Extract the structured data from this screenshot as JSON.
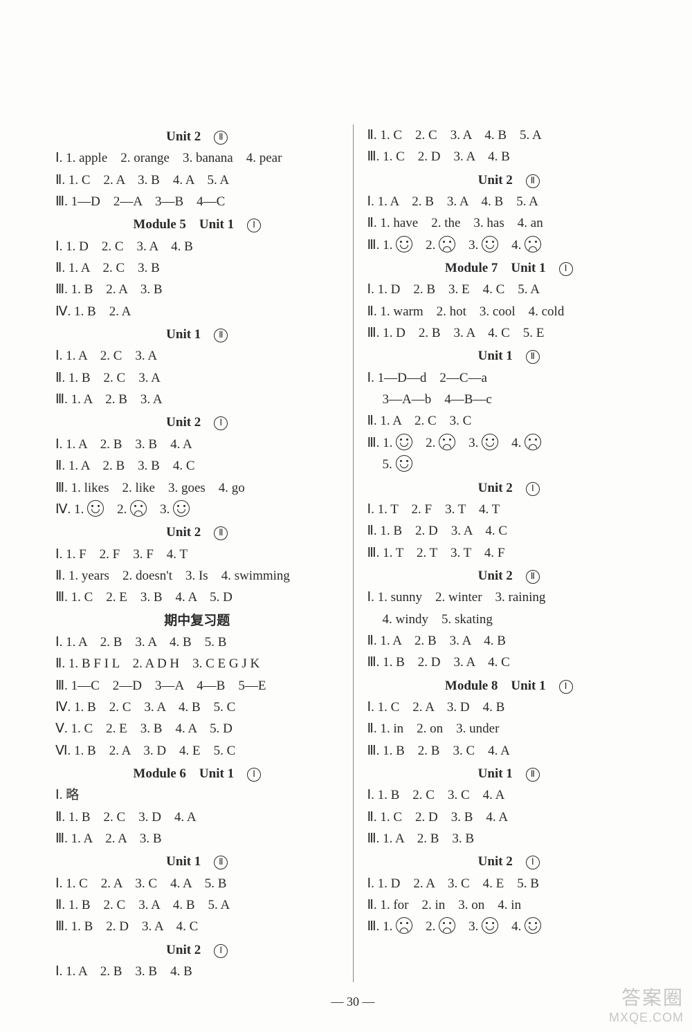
{
  "page_number": "— 30 —",
  "watermark": {
    "line1": "答案圈",
    "line2": "MXQE.COM"
  },
  "left": [
    {
      "type": "heading",
      "text": "Unit 2",
      "circ": "Ⅱ"
    },
    {
      "type": "line",
      "text": "Ⅰ. 1. apple　2. orange　3. banana　4. pear"
    },
    {
      "type": "line",
      "text": "Ⅱ. 1. C　2. A　3. B　4. A　5. A"
    },
    {
      "type": "line",
      "text": "Ⅲ. 1—D　2—A　3—B　4—C"
    },
    {
      "type": "heading",
      "text": "Module 5　Unit 1",
      "circ": "Ⅰ"
    },
    {
      "type": "line",
      "text": "Ⅰ. 1. D　2. C　3. A　4. B"
    },
    {
      "type": "line",
      "text": "Ⅱ. 1. A　2. C　3. B"
    },
    {
      "type": "line",
      "text": "Ⅲ. 1. B　2. A　3. B"
    },
    {
      "type": "line",
      "text": "Ⅳ. 1. B　2. A"
    },
    {
      "type": "heading",
      "text": "Unit 1",
      "circ": "Ⅱ"
    },
    {
      "type": "line",
      "text": "Ⅰ. 1. A　2. C　3. A"
    },
    {
      "type": "line",
      "text": "Ⅱ. 1. B　2. C　3. A"
    },
    {
      "type": "line",
      "text": "Ⅲ. 1. A　2. B　3. A"
    },
    {
      "type": "heading",
      "text": "Unit 2",
      "circ": "Ⅰ"
    },
    {
      "type": "line",
      "text": "Ⅰ. 1. A　2. B　3. B　4. A"
    },
    {
      "type": "line",
      "text": "Ⅱ. 1. A　2. B　3. B　4. C"
    },
    {
      "type": "line",
      "text": "Ⅲ. 1. likes　2. like　3. goes　4. go"
    },
    {
      "type": "faces",
      "prefix": "Ⅳ. ",
      "items": [
        "1.",
        "smile",
        "2.",
        "frown",
        "3.",
        "smile"
      ]
    },
    {
      "type": "heading",
      "text": "Unit 2",
      "circ": "Ⅱ"
    },
    {
      "type": "line",
      "text": "Ⅰ. 1. F　2. F　3. F　4. T"
    },
    {
      "type": "line",
      "text": "Ⅱ. 1. years　2. doesn't　3. Is　4. swimming"
    },
    {
      "type": "line",
      "text": "Ⅲ. 1. C　2. E　3. B　4. A　5. D"
    },
    {
      "type": "heading",
      "text": "期中复习题",
      "circ": ""
    },
    {
      "type": "line",
      "text": "Ⅰ. 1. A　2. B　3. A　4. B　5. B"
    },
    {
      "type": "line",
      "text": "Ⅱ. 1. B F I L　2. A D H　3. C E G J K"
    },
    {
      "type": "line",
      "text": "Ⅲ. 1—C　2—D　3—A　4—B　5—E"
    },
    {
      "type": "line",
      "text": "Ⅳ. 1. B　2. C　3. A　4. B　5. C"
    },
    {
      "type": "line",
      "text": "Ⅴ. 1. C　2. E　3. B　4. A　5. D"
    },
    {
      "type": "line",
      "text": "Ⅵ. 1. B　2. A　3. D　4. E　5. C"
    },
    {
      "type": "heading",
      "text": "Module 6　Unit 1",
      "circ": "Ⅰ"
    },
    {
      "type": "line",
      "text": "Ⅰ. 略"
    },
    {
      "type": "line",
      "text": "Ⅱ. 1. B　2. C　3. D　4. A"
    },
    {
      "type": "line",
      "text": "Ⅲ. 1. A　2. A　3. B"
    },
    {
      "type": "heading",
      "text": "Unit 1",
      "circ": "Ⅱ"
    },
    {
      "type": "line",
      "text": "Ⅰ. 1. C　2. A　3. C　4. A　5. B"
    },
    {
      "type": "line",
      "text": "Ⅱ. 1. B　2. C　3. A　4. B　5. A"
    },
    {
      "type": "line",
      "text": "Ⅲ. 1. B　2. D　3. A　4. C"
    },
    {
      "type": "heading",
      "text": "Unit 2",
      "circ": "Ⅰ"
    },
    {
      "type": "line",
      "text": "Ⅰ. 1. A　2. B　3. B　4. B"
    }
  ],
  "right": [
    {
      "type": "line",
      "text": "Ⅱ. 1. C　2. C　3. A　4. B　5. A"
    },
    {
      "type": "line",
      "text": "Ⅲ. 1. C　2. D　3. A　4. B"
    },
    {
      "type": "heading",
      "text": "Unit 2",
      "circ": "Ⅱ"
    },
    {
      "type": "line",
      "text": "Ⅰ. 1. A　2. B　3. A　4. B　5. A"
    },
    {
      "type": "line",
      "text": "Ⅱ. 1. have　2. the　3. has　4. an"
    },
    {
      "type": "faces",
      "prefix": "Ⅲ. ",
      "items": [
        "1.",
        "smile",
        "2.",
        "frown",
        "3.",
        "smile",
        "4.",
        "frown"
      ]
    },
    {
      "type": "heading",
      "text": "Module 7　Unit 1",
      "circ": "Ⅰ"
    },
    {
      "type": "line",
      "text": "Ⅰ. 1. D　2. B　3. E　4. C　5. A"
    },
    {
      "type": "line",
      "text": "Ⅱ. 1. warm　2. hot　3. cool　4. cold"
    },
    {
      "type": "line",
      "text": "Ⅲ. 1. D　2. B　3. A　4. C　5. E"
    },
    {
      "type": "heading",
      "text": "Unit 1",
      "circ": "Ⅱ"
    },
    {
      "type": "line",
      "text": "Ⅰ. 1—D—d　2—C—a"
    },
    {
      "type": "line",
      "indent": true,
      "text": "3—A—b　4—B—c"
    },
    {
      "type": "line",
      "text": "Ⅱ. 1. A　2. C　3. C"
    },
    {
      "type": "faces",
      "prefix": "Ⅲ. ",
      "items": [
        "1.",
        "smile",
        "2.",
        "frown",
        "3.",
        "smile",
        "4.",
        "frown"
      ]
    },
    {
      "type": "faces",
      "prefix": "",
      "indent": true,
      "items": [
        "5.",
        "smile"
      ]
    },
    {
      "type": "heading",
      "text": "Unit 2",
      "circ": "Ⅰ"
    },
    {
      "type": "line",
      "text": "Ⅰ. 1. T　2. F　3. T　4. T"
    },
    {
      "type": "line",
      "text": "Ⅱ. 1. B　2. D　3. A　4. C"
    },
    {
      "type": "line",
      "text": "Ⅲ. 1. T　2. T　3. T　4. F"
    },
    {
      "type": "heading",
      "text": "Unit 2",
      "circ": "Ⅱ"
    },
    {
      "type": "line",
      "text": "Ⅰ. 1. sunny　2. winter　3. raining"
    },
    {
      "type": "line",
      "indent": true,
      "text": "4. windy　5. skating"
    },
    {
      "type": "line",
      "text": "Ⅱ. 1. A　2. B　3. A　4. B"
    },
    {
      "type": "line",
      "text": "Ⅲ. 1. B　2. D　3. A　4. C"
    },
    {
      "type": "heading",
      "text": "Module 8　Unit 1",
      "circ": "Ⅰ"
    },
    {
      "type": "line",
      "text": "Ⅰ. 1. C　2. A　3. D　4. B"
    },
    {
      "type": "line",
      "text": "Ⅱ. 1. in　2. on　3. under"
    },
    {
      "type": "line",
      "text": "Ⅲ. 1. B　2. B　3. C　4. A"
    },
    {
      "type": "heading",
      "text": "Unit 1",
      "circ": "Ⅱ"
    },
    {
      "type": "line",
      "text": "Ⅰ. 1. B　2. C　3. C　4. A"
    },
    {
      "type": "line",
      "text": "Ⅱ. 1. C　2. D　3. B　4. A"
    },
    {
      "type": "line",
      "text": "Ⅲ. 1. A　2. B　3. B"
    },
    {
      "type": "heading",
      "text": "Unit 2",
      "circ": "Ⅰ"
    },
    {
      "type": "line",
      "text": "Ⅰ. 1. D　2. A　3. C　4. E　5. B"
    },
    {
      "type": "line",
      "text": "Ⅱ. 1. for　2. in　3. on　4. in"
    },
    {
      "type": "faces",
      "prefix": "Ⅲ. ",
      "items": [
        "1.",
        "frown",
        "2.",
        "frown",
        "3.",
        "smile",
        "4.",
        "smile"
      ]
    }
  ]
}
